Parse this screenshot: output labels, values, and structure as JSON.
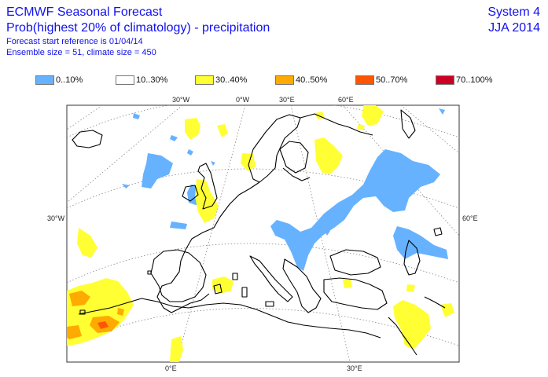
{
  "header": {
    "title": "ECMWF Seasonal Forecast",
    "subtitle": "Prob(highest 20% of climatology) - precipitation",
    "start_ref": "Forecast start reference is 01/04/14",
    "ensemble": "Ensemble size = 51, climate size = 450"
  },
  "system_info": {
    "system": "System 4",
    "season": "JJA 2014"
  },
  "legend": [
    {
      "label": "0..10%",
      "color": "#66b2ff"
    },
    {
      "label": "10..30%",
      "color": "#ffffff"
    },
    {
      "label": "30..40%",
      "color": "#ffff33"
    },
    {
      "label": "40..50%",
      "color": "#ffaa00"
    },
    {
      "label": "50..70%",
      "color": "#ff5500"
    },
    {
      "label": "70..100%",
      "color": "#cc0022"
    }
  ],
  "map": {
    "top_labels": [
      "30°W",
      "0°W",
      "30°E",
      "60°E"
    ],
    "left_label": "30°W",
    "right_label": "60°E",
    "bottom_labels": [
      "0°E",
      "30°E"
    ]
  }
}
